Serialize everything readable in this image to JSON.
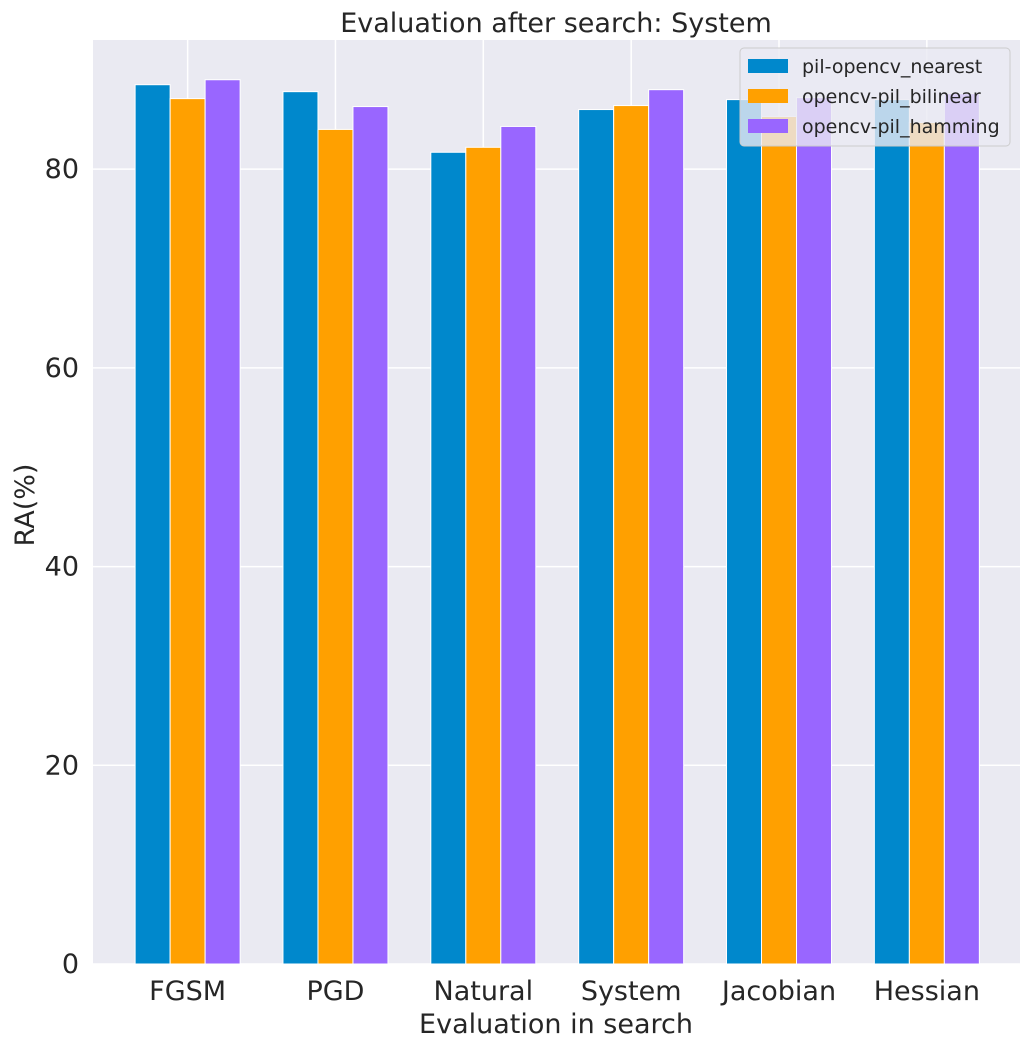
{
  "chart_data": {
    "type": "bar",
    "title": "Evaluation after search: System",
    "xlabel": "Evaluation in search",
    "ylabel": "RA(%)",
    "categories": [
      "FGSM",
      "PGD",
      "Natural",
      "System",
      "Jacobian",
      "Hessian"
    ],
    "ylim": [
      0,
      93
    ],
    "yticks": [
      0,
      20,
      40,
      60,
      80
    ],
    "grid": true,
    "legend_position": "top-right",
    "series": [
      {
        "name": "pil-opencv_nearest",
        "color": "#0088cc",
        "values": [
          88.5,
          87.8,
          81.7,
          86.0,
          87.0,
          87.0
        ]
      },
      {
        "name": "opencv-pil_bilinear",
        "color": "#ffa000",
        "values": [
          87.1,
          84.0,
          82.2,
          86.4,
          85.3,
          84.7
        ]
      },
      {
        "name": "opencv-pil_hamming",
        "color": "#9966ff",
        "values": [
          89.0,
          86.3,
          84.3,
          88.0,
          87.2,
          87.6
        ]
      }
    ]
  }
}
